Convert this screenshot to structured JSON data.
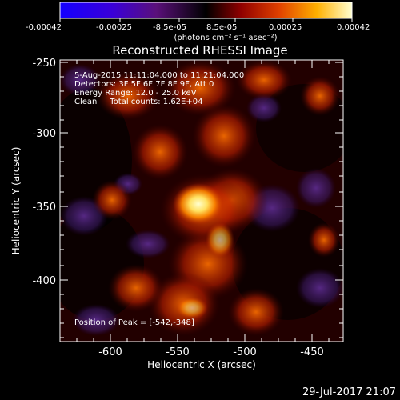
{
  "colorbar": {
    "tick_values": [
      "-0.00042",
      "-0.00025",
      "-8.5e-05",
      "8.5e-05",
      "0.00025",
      "0.00042"
    ],
    "units": "(photons cm⁻² s⁻¹ asec⁻²)"
  },
  "figure": {
    "title": "Reconstructed RHESSI Image",
    "x_axis_label": "Heliocentric X (arcsec)",
    "y_axis_label": "Heliocentric Y (arcsec)",
    "x_ticks": [
      "-600",
      "-550",
      "-500",
      "-450"
    ],
    "y_ticks": [
      "-250",
      "-300",
      "-350",
      "-400"
    ]
  },
  "annotations": {
    "time_range": "5-Aug-2015 11:11:04.000 to 11:21:04.000",
    "detectors": "Detectors: 3F 5F 6F 7F 8F 9F, Att 0",
    "energy_range": "Energy Range: 12.0 - 25.0 keV",
    "clean_info": "Clean     Total counts: 1.62E+04",
    "peak_position": "Position of Peak = [-542,-348]"
  },
  "footer": {
    "timestamp": "29-Jul-2017 21:07"
  },
  "colors": {
    "background": "#000000",
    "negative_end": "#1400ff",
    "zero": "#000000",
    "positive_end": "#ffffd0"
  }
}
